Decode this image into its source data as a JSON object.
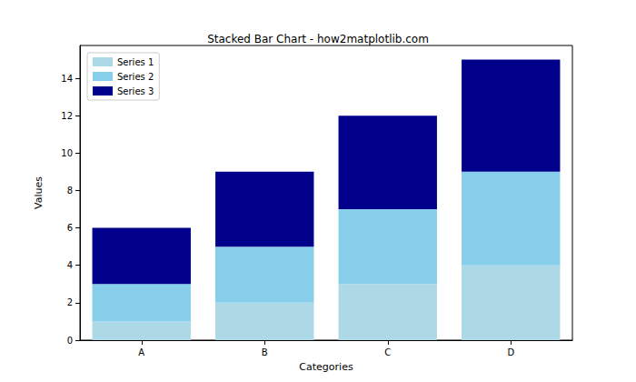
{
  "chart_data": {
    "type": "bar",
    "title": "Stacked Bar Chart - how2matplotlib.com",
    "x_label": "Categories",
    "y_label": "Values",
    "categories": [
      "A",
      "B",
      "C",
      "D"
    ],
    "series": [
      {
        "name": "Series 1",
        "color": "#add8e6",
        "values": [
          1,
          2,
          3,
          4
        ]
      },
      {
        "name": "Series 2",
        "color": "#87ceeb",
        "values": [
          2,
          3,
          4,
          5
        ]
      },
      {
        "name": "Series 3",
        "color": "#00008b",
        "values": [
          3,
          4,
          5,
          6
        ]
      }
    ],
    "stacked": true,
    "ylim": [
      0,
      15.75
    ],
    "yticks": [
      0,
      2,
      4,
      6,
      8,
      10,
      12,
      14
    ],
    "grid": false,
    "legend": "upper left"
  }
}
